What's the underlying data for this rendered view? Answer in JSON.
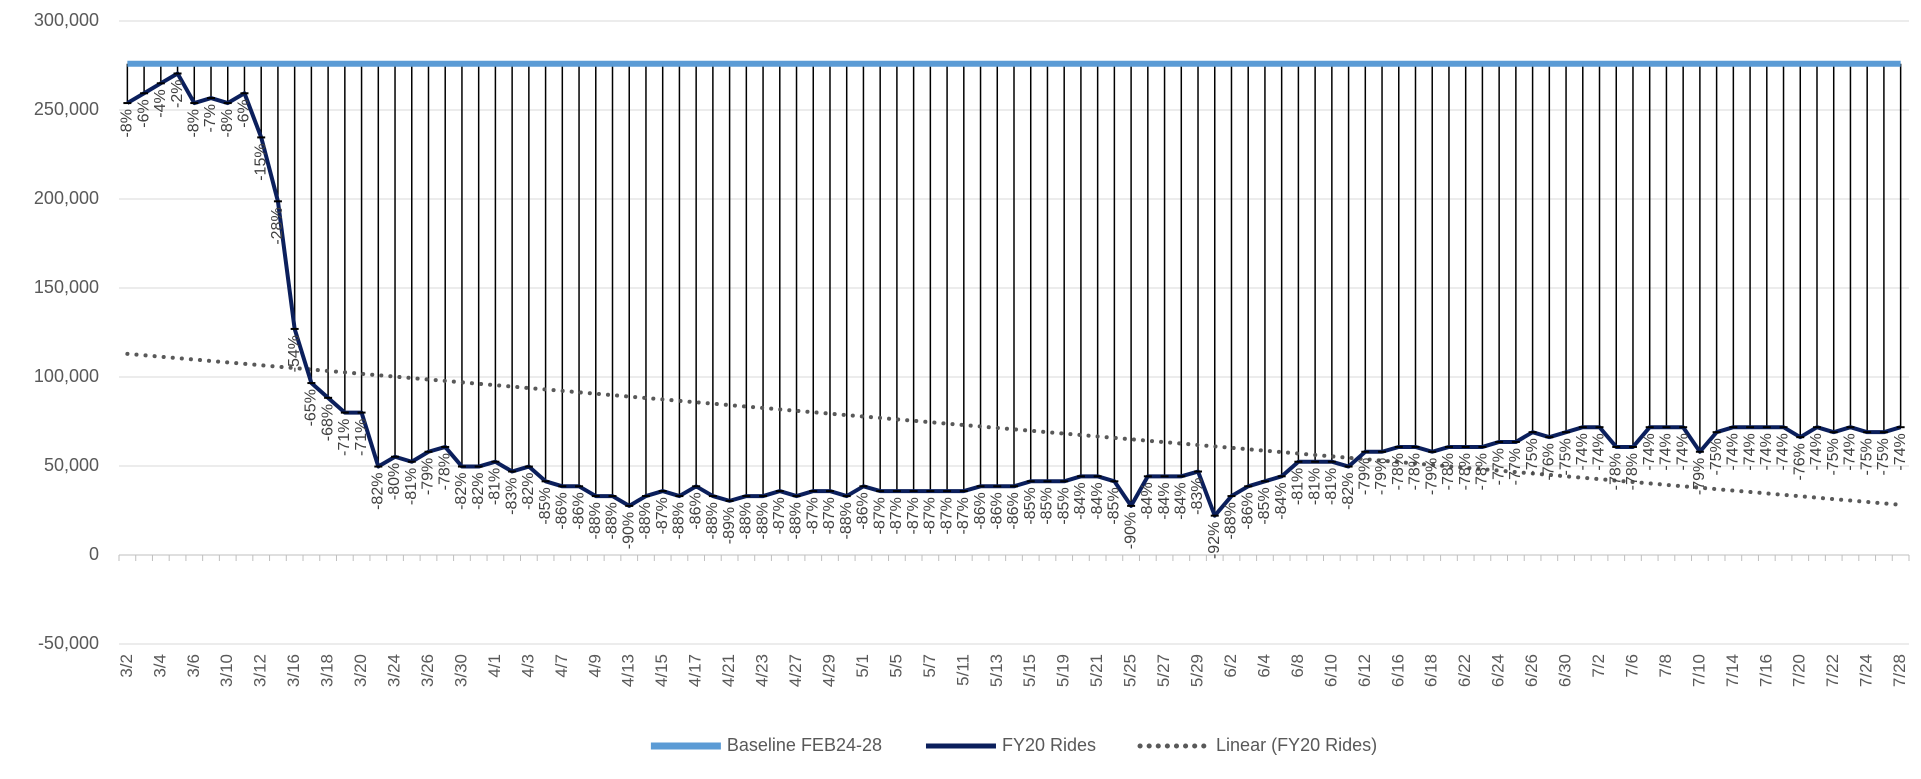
{
  "chart_data": {
    "type": "line",
    "ylim": [
      -50000,
      300000
    ],
    "yticks": [
      {
        "value": -50000,
        "label": "-50,000"
      },
      0,
      {
        "value": 50000,
        "label": "50,000"
      },
      {
        "value": 100000,
        "label": "100,000"
      },
      {
        "value": 150000,
        "label": "150,000"
      },
      {
        "value": 200000,
        "label": "200,000"
      },
      {
        "value": 250000,
        "label": "250,000"
      },
      {
        "value": 300000,
        "label": "300,000"
      }
    ],
    "grid": true,
    "legend": "bottom",
    "drop_lines": true,
    "categories": [
      "3/2",
      null,
      "3/4",
      null,
      "3/6",
      null,
      "3/10",
      null,
      "3/12",
      null,
      "3/16",
      null,
      "3/18",
      null,
      "3/20",
      null,
      "3/24",
      null,
      "3/26",
      null,
      "3/30",
      null,
      "4/1",
      null,
      "4/3",
      null,
      "4/7",
      null,
      "4/9",
      null,
      "4/13",
      null,
      "4/15",
      null,
      "4/17",
      null,
      "4/21",
      null,
      "4/23",
      null,
      "4/27",
      null,
      "4/29",
      null,
      "5/1",
      null,
      "5/5",
      null,
      "5/7",
      null,
      "5/11",
      null,
      "5/13",
      null,
      "5/15",
      null,
      "5/19",
      null,
      "5/21",
      null,
      "5/25",
      null,
      "5/27",
      null,
      "5/29",
      null,
      "6/2",
      null,
      "6/4",
      null,
      "6/8",
      null,
      "6/10",
      null,
      "6/12",
      null,
      "6/16",
      null,
      "6/18",
      null,
      "6/22",
      null,
      "6/24",
      null,
      "6/26",
      null,
      "6/30",
      null,
      "7/2",
      null,
      "7/6",
      null,
      "7/8",
      null,
      "7/10",
      null,
      "7/14",
      null,
      "7/16",
      null,
      "7/20",
      null,
      "7/22",
      null,
      "7/24",
      null,
      "7/28"
    ],
    "series": [
      {
        "name": "Baseline FEB24-28",
        "color": "#5b9bd5",
        "style": "solid",
        "width": 6,
        "values": [
          276000,
          276000,
          276000,
          276000,
          276000,
          276000,
          276000,
          276000,
          276000,
          276000,
          276000,
          276000,
          276000,
          276000,
          276000,
          276000,
          276000,
          276000,
          276000,
          276000,
          276000,
          276000,
          276000,
          276000,
          276000,
          276000,
          276000,
          276000,
          276000,
          276000,
          276000,
          276000,
          276000,
          276000,
          276000,
          276000,
          276000,
          276000,
          276000,
          276000,
          276000,
          276000,
          276000,
          276000,
          276000,
          276000,
          276000,
          276000,
          276000,
          276000,
          276000,
          276000,
          276000,
          276000,
          276000,
          276000,
          276000,
          276000,
          276000,
          276000,
          276000,
          276000,
          276000,
          276000,
          276000,
          276000,
          276000,
          276000,
          276000,
          276000,
          276000,
          276000,
          276000,
          276000,
          276000,
          276000,
          276000,
          276000,
          276000,
          276000,
          276000,
          276000,
          276000,
          276000,
          276000,
          276000,
          276000,
          276000,
          276000,
          276000,
          276000,
          276000,
          276000,
          276000,
          276000,
          276000,
          276000,
          276000,
          276000,
          276000,
          276000,
          276000,
          276000,
          276000,
          276000,
          276000,
          276000
        ]
      },
      {
        "name": "FY20 Rides",
        "color": "#0b1f5c",
        "style": "solid",
        "width": 4,
        "values": [
          253900,
          259400,
          265000,
          270500,
          253900,
          256700,
          253900,
          259400,
          234600,
          198700,
          127000,
          96600,
          88300,
          80000,
          80000,
          49700,
          55200,
          52400,
          58000,
          60700,
          49700,
          49700,
          52400,
          46900,
          49700,
          41400,
          38600,
          38600,
          33100,
          33100,
          27600,
          33100,
          35900,
          33100,
          38600,
          33100,
          30400,
          33100,
          33100,
          35900,
          33100,
          35900,
          35900,
          33100,
          38600,
          35900,
          35900,
          35900,
          35900,
          35900,
          35900,
          38600,
          38600,
          38600,
          41400,
          41400,
          41400,
          44200,
          44200,
          41400,
          27600,
          44200,
          44200,
          44200,
          46900,
          22100,
          33100,
          38600,
          41400,
          44200,
          52400,
          52400,
          52400,
          49700,
          58000,
          58000,
          60700,
          60700,
          58000,
          60700,
          60700,
          60700,
          63500,
          63500,
          69000,
          66200,
          69000,
          71800,
          71800,
          60700,
          60700,
          71800,
          71800,
          71800,
          58000,
          69000,
          71800,
          71800,
          71800,
          71800,
          66200,
          71800,
          69000,
          71800,
          69000,
          69000,
          71800
        ],
        "labels": [
          "-8%",
          "-6%",
          "-4%",
          "-2%",
          "-8%",
          "-7%",
          "-8%",
          "-6%",
          "-15%",
          "-28%",
          "-54%",
          "-65%",
          "-68%",
          "-71%",
          "-71%",
          "-82%",
          "-80%",
          "-81%",
          "-79%",
          "-78%",
          "-82%",
          "-82%",
          "-81%",
          "-83%",
          "-82%",
          "-85%",
          "-86%",
          "-86%",
          "-88%",
          "-88%",
          "-90%",
          "-88%",
          "-87%",
          "-88%",
          "-86%",
          "-88%",
          "-89%",
          "-88%",
          "-88%",
          "-87%",
          "-88%",
          "-87%",
          "-87%",
          "-88%",
          "-86%",
          "-87%",
          "-87%",
          "-87%",
          "-87%",
          "-87%",
          "-87%",
          "-86%",
          "-86%",
          "-86%",
          "-85%",
          "-85%",
          "-85%",
          "-84%",
          "-84%",
          "-85%",
          "-90%",
          "-84%",
          "-84%",
          "-84%",
          "-83%",
          "-92%",
          "-88%",
          "-86%",
          "-85%",
          "-84%",
          "-81%",
          "-81%",
          "-81%",
          "-82%",
          "-79%",
          "-79%",
          "-78%",
          "-78%",
          "-79%",
          "-78%",
          "-78%",
          "-78%",
          "-77%",
          "-77%",
          "-75%",
          "-76%",
          "-75%",
          "-74%",
          "-74%",
          "-78%",
          "-78%",
          "-74%",
          "-74%",
          "-74%",
          "-79%",
          "-75%",
          "-74%",
          "-74%",
          "-74%",
          "-74%",
          "-76%",
          "-74%",
          "-75%",
          "-74%",
          "-75%",
          "-75%",
          "-74%"
        ]
      },
      {
        "name": "Linear (FY20 Rides)",
        "color": "#595959",
        "style": "dotted",
        "width": 4,
        "values": [
          113000,
          112200,
          111400,
          110600,
          109800,
          109000,
          108200,
          107400,
          106600,
          105800,
          105000,
          104200,
          103400,
          102600,
          101800,
          101000,
          100200,
          99400,
          98600,
          97800,
          97000,
          96200,
          95400,
          94600,
          93800,
          93000,
          92200,
          91400,
          90600,
          89800,
          89000,
          88200,
          87400,
          86600,
          85800,
          85000,
          84200,
          83400,
          82600,
          81800,
          81000,
          80200,
          79400,
          78600,
          77800,
          77000,
          76200,
          75400,
          74600,
          73800,
          73000,
          72200,
          71400,
          70600,
          69800,
          69000,
          68200,
          67400,
          66600,
          65800,
          65000,
          64200,
          63400,
          62600,
          61800,
          61000,
          60200,
          59400,
          58600,
          57800,
          57000,
          56200,
          55400,
          54600,
          53800,
          53000,
          52200,
          51400,
          50600,
          49800,
          49000,
          48200,
          47400,
          46600,
          45800,
          45000,
          44200,
          43400,
          42600,
          41800,
          41000,
          40200,
          39400,
          38600,
          37800,
          37000,
          36200,
          35400,
          34600,
          33800,
          33000,
          32200,
          31400,
          30600,
          29800,
          29000,
          28200
        ]
      }
    ]
  }
}
